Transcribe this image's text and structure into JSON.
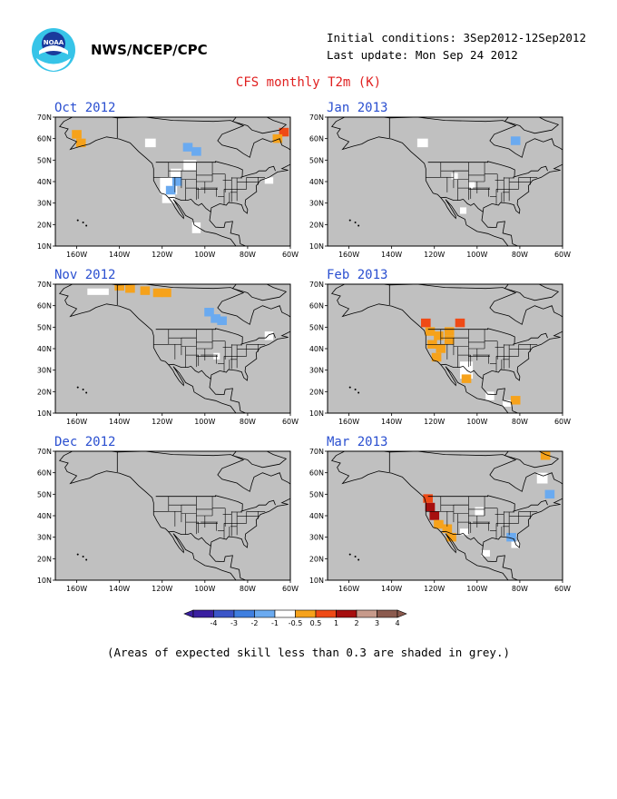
{
  "header": {
    "org": "NWS/NCEP/CPC",
    "initial_conditions": "Initial conditions: 3Sep2012-12Sep2012",
    "last_update": "Last update: Mon Sep 24 2012",
    "title": "CFS monthly T2m (K)"
  },
  "panels": [
    {
      "title": "Oct 2012",
      "anomalies": [
        {
          "lon": -160,
          "lat": 62,
          "value": 0.5
        },
        {
          "lon": -158,
          "lat": 58,
          "value": 0.5
        },
        {
          "lon": -63,
          "lat": 63,
          "value": 1
        },
        {
          "lon": -58,
          "lat": 66,
          "value": 1
        },
        {
          "lon": -66,
          "lat": 60,
          "value": 0.5
        },
        {
          "lon": -108,
          "lat": 56,
          "value": -1
        },
        {
          "lon": -104,
          "lat": 54,
          "value": -1
        },
        {
          "lon": -113,
          "lat": 40,
          "value": -1
        },
        {
          "lon": -116,
          "lat": 36,
          "value": -1
        }
      ]
    },
    {
      "title": "Nov 2012",
      "anomalies": [
        {
          "lon": -140,
          "lat": 69,
          "value": 0.5
        },
        {
          "lon": -135,
          "lat": 68,
          "value": 0.5
        },
        {
          "lon": -128,
          "lat": 67,
          "value": 0.5
        },
        {
          "lon": -122,
          "lat": 66,
          "value": 0.5
        },
        {
          "lon": -118,
          "lat": 66,
          "value": 0.5
        },
        {
          "lon": -98,
          "lat": 57,
          "value": -1
        },
        {
          "lon": -95,
          "lat": 54,
          "value": -1
        },
        {
          "lon": -92,
          "lat": 53,
          "value": -1
        }
      ]
    },
    {
      "title": "Dec 2012",
      "anomalies": []
    },
    {
      "title": "Jan 2013",
      "anomalies": [
        {
          "lon": -82,
          "lat": 59,
          "value": -1
        }
      ]
    },
    {
      "title": "Feb 2013",
      "anomalies": [
        {
          "lon": -122,
          "lat": 48,
          "value": 0.5
        },
        {
          "lon": -118,
          "lat": 46,
          "value": 0.5
        },
        {
          "lon": -121,
          "lat": 42,
          "value": 0.5
        },
        {
          "lon": -117,
          "lat": 40,
          "value": 0.5
        },
        {
          "lon": -113,
          "lat": 44,
          "value": 0.5
        },
        {
          "lon": -119,
          "lat": 36,
          "value": 0.5
        },
        {
          "lon": -113,
          "lat": 48,
          "value": 0.5
        },
        {
          "lon": -108,
          "lat": 52,
          "value": 1
        },
        {
          "lon": -124,
          "lat": 52,
          "value": 1
        },
        {
          "lon": -105,
          "lat": 26,
          "value": 0.5
        },
        {
          "lon": -82,
          "lat": 16,
          "value": 0.5
        }
      ]
    },
    {
      "title": "Mar 2013",
      "anomalies": [
        {
          "lon": -122,
          "lat": 44,
          "value": 2
        },
        {
          "lon": -120,
          "lat": 40,
          "value": 2
        },
        {
          "lon": -118,
          "lat": 36,
          "value": 0.5
        },
        {
          "lon": -114,
          "lat": 34,
          "value": 0.5
        },
        {
          "lon": -112,
          "lat": 30,
          "value": 0.5
        },
        {
          "lon": -123,
          "lat": 48,
          "value": 1
        },
        {
          "lon": -68,
          "lat": 68,
          "value": 0.5
        },
        {
          "lon": -66,
          "lat": 50,
          "value": -1
        },
        {
          "lon": -84,
          "lat": 30,
          "value": -1
        }
      ]
    }
  ],
  "x_ticks": [
    "160W",
    "140W",
    "120W",
    "100W",
    "80W",
    "60W"
  ],
  "y_ticks": [
    "70N",
    "60N",
    "50N",
    "40N",
    "30N",
    "20N",
    "10N"
  ],
  "colorbar": {
    "labels": [
      "-4",
      "-3",
      "-2",
      "-1",
      "-0.5",
      "0.5",
      "1",
      "2",
      "3",
      "4"
    ],
    "colors": [
      "#3a1fa0",
      "#3b55c8",
      "#3f7fe0",
      "#6aaaf0",
      "#ffffff",
      "#f6a21b",
      "#ef4a16",
      "#a60f0f",
      "#c79a8b",
      "#8b5a4e"
    ]
  },
  "caption": "(Areas of expected skill less than 0.3 are shaded in grey.)"
}
